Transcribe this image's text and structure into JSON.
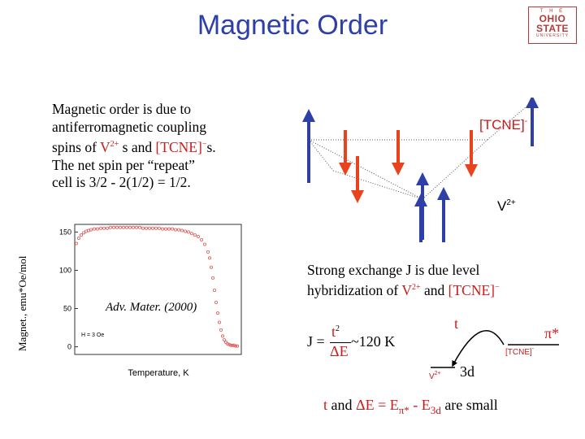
{
  "header": {
    "title": "Magnetic Order",
    "logo": {
      "line1": "T H E",
      "line2": "OHIO",
      "line3": "STATE",
      "line4": "UNIVERSITY"
    }
  },
  "description": {
    "line1": "Magnetic order is due to",
    "line2": "antiferromagnetic coupling",
    "line3_prefix": "spins of ",
    "v_label": "V",
    "v_charge": "2+",
    "line3_middle": " s and ",
    "tcne_label": "[TCNE]",
    "tcne_charge": "−",
    "line3_suffix": "s.",
    "line4": "The net spin per “repeat”",
    "line5": "cell is  3/2 - 2(1/2) = 1/2."
  },
  "diagram": {
    "tcne_label": "[TCNE]",
    "tcne_charge": "-",
    "v_label": "V",
    "v_charge": "2+",
    "spin_up_color": "#2f3fa8",
    "spin_down_color": "#e8431c"
  },
  "chart": {
    "ylabel": "Magnet., emu*Oe/mol",
    "xlabel": "Temperature, K",
    "field_note": "H = 3 Oe",
    "reference": "Adv. Mater. (2000)",
    "y_ticks": [
      "150",
      "100",
      "50",
      "0"
    ]
  },
  "chart_data": {
    "type": "scatter",
    "ylabel": "Magnet., emu*Oe/mol",
    "xlabel": "Temperature, K",
    "ylim": [
      -10,
      160
    ],
    "y_ticks": [
      0,
      50,
      100,
      150
    ],
    "x": [
      2,
      5,
      8,
      11,
      14,
      17,
      20,
      24,
      28,
      32,
      36,
      40,
      44,
      48,
      52,
      56,
      60,
      64,
      68,
      72,
      76,
      80,
      84,
      88,
      92,
      96,
      100,
      104,
      108,
      112,
      116,
      120,
      124,
      128,
      132,
      136,
      140,
      144,
      148,
      152,
      156,
      160,
      164,
      166,
      168,
      170,
      172,
      174,
      176,
      178,
      180,
      182,
      184,
      186,
      188,
      190,
      192,
      194,
      196,
      198,
      200
    ],
    "y": [
      135,
      142,
      146,
      149,
      151,
      152,
      153,
      154,
      154,
      155,
      155,
      155,
      156,
      156,
      156,
      156,
      156,
      156,
      156,
      156,
      156,
      156,
      155,
      155,
      155,
      155,
      155,
      155,
      154,
      154,
      154,
      154,
      153,
      153,
      152,
      151,
      150,
      148,
      146,
      144,
      140,
      134,
      124,
      116,
      104,
      90,
      74,
      58,
      44,
      32,
      22,
      14,
      9,
      6,
      4,
      3,
      2,
      2,
      2,
      1,
      1
    ]
  },
  "exchange": {
    "line1": "Strong exchange J is due level",
    "line2_prefix": "hybridization of ",
    "v_label": "V",
    "v_charge": "2+",
    "and_text": " and ",
    "tcne_label": "[TCNE]",
    "tcne_charge": "−"
  },
  "formula": {
    "j_prefix": "J =",
    "numerator": "t",
    "exponent": "2",
    "denominator": "ΔE",
    "approx": "~120 K",
    "t_label": "t",
    "pi_star": "π*",
    "tcne_level": "[TCNE]",
    "tcne_level_charge": "-",
    "v_level": "V",
    "v_level_charge": "2+",
    "level_3d": "3d"
  },
  "bottom_note": {
    "t": "t",
    "and": "and",
    "delta_e": "ΔE = E",
    "pi_sub": "π*",
    "minus_e": "- E",
    "sub_3d": "3d",
    "are_small": "are small"
  }
}
